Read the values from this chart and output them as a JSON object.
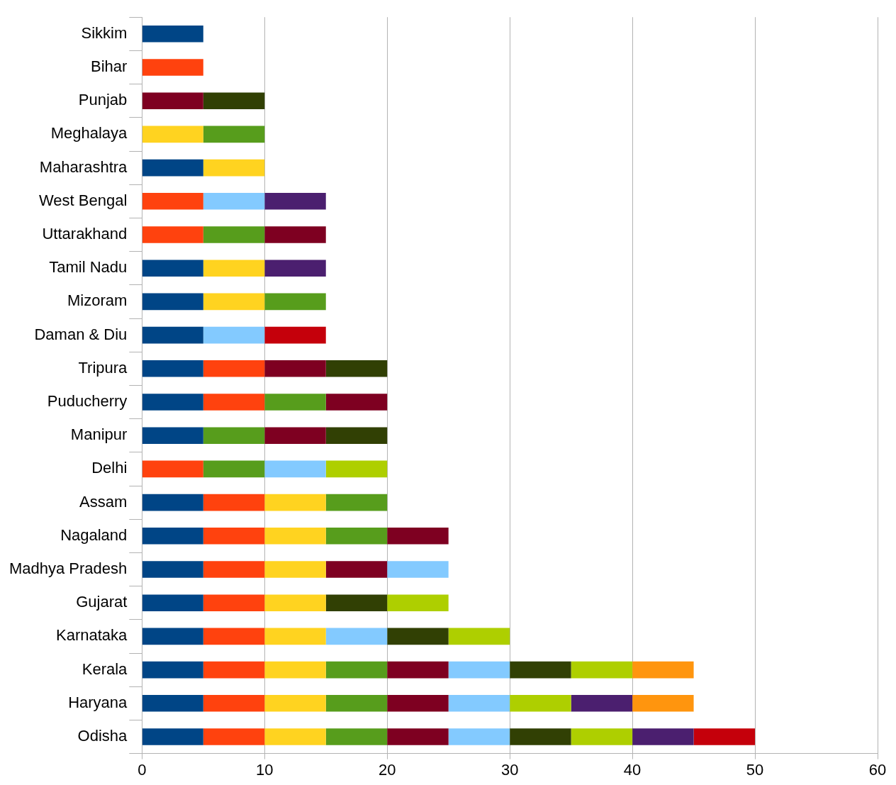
{
  "chart_data": {
    "type": "bar",
    "orientation": "horizontal",
    "stacked": true,
    "categories": [
      "Sikkim",
      "Bihar",
      "Punjab",
      "Meghalaya",
      "Maharashtra",
      "West Bengal",
      "Uttarakhand",
      "Tamil Nadu",
      "Mizoram",
      "Daman & Diu",
      "Tripura",
      "Puducherry",
      "Manipur",
      "Delhi",
      "Assam",
      "Nagaland",
      "Madhya Pradesh",
      "Gujarat",
      "Karnataka",
      "Kerala",
      "Haryana",
      "Odisha"
    ],
    "series": [
      {
        "color": "#004586",
        "values": [
          5,
          null,
          null,
          null,
          5,
          null,
          null,
          5,
          5,
          5,
          5,
          5,
          5,
          null,
          5,
          5,
          5,
          5,
          5,
          5,
          5,
          5
        ]
      },
      {
        "color": "#ff420e",
        "values": [
          null,
          5,
          null,
          null,
          null,
          5,
          5,
          null,
          null,
          null,
          5,
          5,
          null,
          5,
          5,
          5,
          5,
          5,
          5,
          5,
          5,
          5
        ]
      },
      {
        "color": "#ffd320",
        "values": [
          null,
          null,
          null,
          5,
          5,
          null,
          null,
          5,
          5,
          null,
          null,
          null,
          null,
          null,
          5,
          5,
          5,
          5,
          5,
          5,
          5,
          5
        ]
      },
      {
        "color": "#579d1c",
        "values": [
          null,
          null,
          null,
          5,
          null,
          null,
          5,
          null,
          5,
          null,
          null,
          5,
          5,
          5,
          5,
          5,
          null,
          null,
          null,
          5,
          5,
          5
        ]
      },
      {
        "color": "#7e0021",
        "values": [
          null,
          null,
          5,
          null,
          null,
          null,
          5,
          null,
          null,
          null,
          5,
          5,
          5,
          null,
          null,
          5,
          5,
          null,
          null,
          5,
          5,
          5
        ]
      },
      {
        "color": "#83caff",
        "values": [
          null,
          null,
          null,
          null,
          null,
          5,
          null,
          null,
          null,
          5,
          null,
          null,
          null,
          5,
          null,
          null,
          5,
          null,
          5,
          5,
          5,
          5
        ]
      },
      {
        "color": "#314004",
        "values": [
          null,
          null,
          5,
          null,
          null,
          null,
          null,
          null,
          null,
          null,
          5,
          null,
          5,
          null,
          null,
          null,
          null,
          5,
          5,
          5,
          null,
          5
        ]
      },
      {
        "color": "#aecf00",
        "values": [
          null,
          null,
          null,
          null,
          null,
          null,
          null,
          null,
          null,
          null,
          null,
          null,
          null,
          5,
          null,
          null,
          null,
          5,
          5,
          5,
          5,
          5
        ]
      },
      {
        "color": "#4b1f6f",
        "values": [
          null,
          null,
          null,
          null,
          null,
          5,
          null,
          5,
          null,
          null,
          null,
          null,
          null,
          null,
          null,
          null,
          null,
          null,
          null,
          null,
          5,
          5
        ]
      },
      {
        "color": "#ff950e",
        "values": [
          null,
          null,
          null,
          null,
          null,
          null,
          null,
          null,
          null,
          null,
          null,
          null,
          null,
          null,
          null,
          null,
          null,
          null,
          null,
          5,
          5,
          null
        ]
      },
      {
        "color": "#c5000b",
        "values": [
          null,
          null,
          null,
          null,
          null,
          null,
          null,
          null,
          null,
          5,
          null,
          null,
          null,
          null,
          null,
          null,
          null,
          null,
          null,
          null,
          null,
          5
        ]
      }
    ],
    "xlim": [
      0,
      60
    ],
    "xticks": [
      0,
      10,
      20,
      30,
      40,
      50,
      60
    ],
    "grid": "x",
    "legend": false
  }
}
